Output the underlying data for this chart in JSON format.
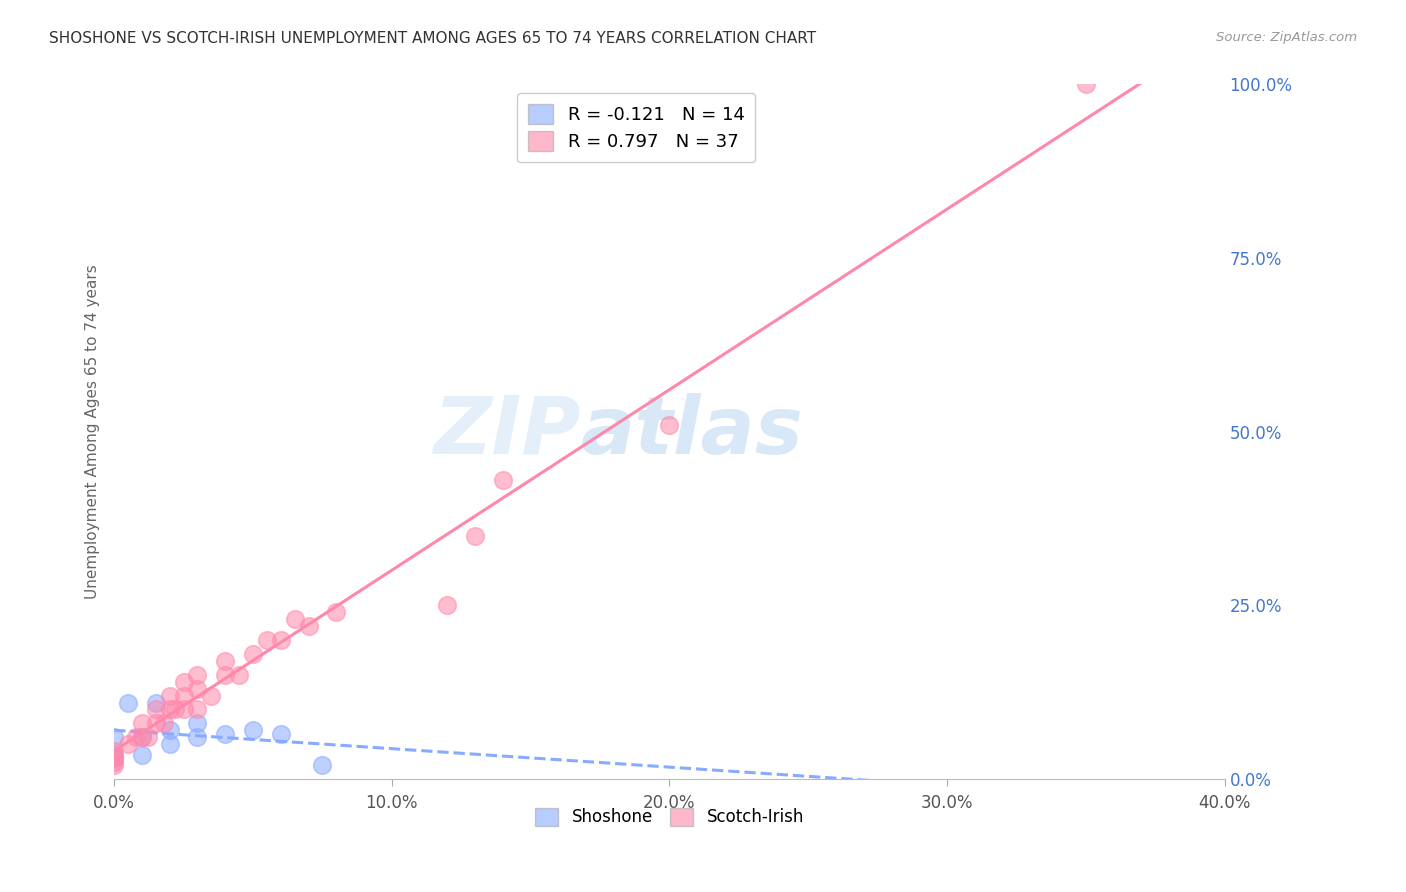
{
  "title": "SHOSHONE VS SCOTCH-IRISH UNEMPLOYMENT AMONG AGES 65 TO 74 YEARS CORRELATION CHART",
  "source": "Source: ZipAtlas.com",
  "ylabel": "Unemployment Among Ages 65 to 74 years",
  "xlim": [
    0.0,
    0.4
  ],
  "ylim": [
    0.0,
    1.0
  ],
  "xticks": [
    0.0,
    0.1,
    0.2,
    0.3,
    0.4
  ],
  "xtick_labels": [
    "0.0%",
    "10.0%",
    "20.0%",
    "30.0%",
    "40.0%"
  ],
  "yticks_right": [
    0.0,
    0.25,
    0.5,
    0.75,
    1.0
  ],
  "ytick_labels_right": [
    "0.0%",
    "25.0%",
    "50.0%",
    "75.0%",
    "100.0%"
  ],
  "shoshone_color": "#88aaff",
  "scotchirish_color": "#ff88aa",
  "shoshone_R": -0.121,
  "shoshone_N": 14,
  "scotchirish_R": 0.797,
  "scotchirish_N": 37,
  "shoshone_x": [
    0.0,
    0.0,
    0.005,
    0.01,
    0.01,
    0.015,
    0.02,
    0.02,
    0.03,
    0.03,
    0.04,
    0.05,
    0.06,
    0.075
  ],
  "shoshone_y": [
    0.03,
    0.06,
    0.11,
    0.035,
    0.06,
    0.11,
    0.05,
    0.07,
    0.06,
    0.08,
    0.065,
    0.07,
    0.065,
    0.02
  ],
  "scotchirish_x": [
    0.0,
    0.0,
    0.0,
    0.0,
    0.0,
    0.005,
    0.008,
    0.01,
    0.01,
    0.012,
    0.015,
    0.015,
    0.018,
    0.02,
    0.02,
    0.022,
    0.025,
    0.025,
    0.025,
    0.03,
    0.03,
    0.03,
    0.035,
    0.04,
    0.04,
    0.045,
    0.05,
    0.055,
    0.06,
    0.065,
    0.07,
    0.08,
    0.12,
    0.13,
    0.14,
    0.2,
    0.35
  ],
  "scotchirish_y": [
    0.02,
    0.025,
    0.03,
    0.035,
    0.04,
    0.05,
    0.06,
    0.06,
    0.08,
    0.06,
    0.08,
    0.1,
    0.08,
    0.1,
    0.12,
    0.1,
    0.1,
    0.12,
    0.14,
    0.1,
    0.13,
    0.15,
    0.12,
    0.15,
    0.17,
    0.15,
    0.18,
    0.2,
    0.2,
    0.23,
    0.22,
    0.24,
    0.25,
    0.35,
    0.43,
    0.51,
    1.0
  ],
  "watermark_zip": "ZIP",
  "watermark_atlas": "atlas",
  "background_color": "#ffffff",
  "grid_color": "#dddddd",
  "title_color": "#333333",
  "right_axis_color": "#4477cc",
  "bottom_legend_labels": [
    "Shoshone",
    "Scotch-Irish"
  ]
}
